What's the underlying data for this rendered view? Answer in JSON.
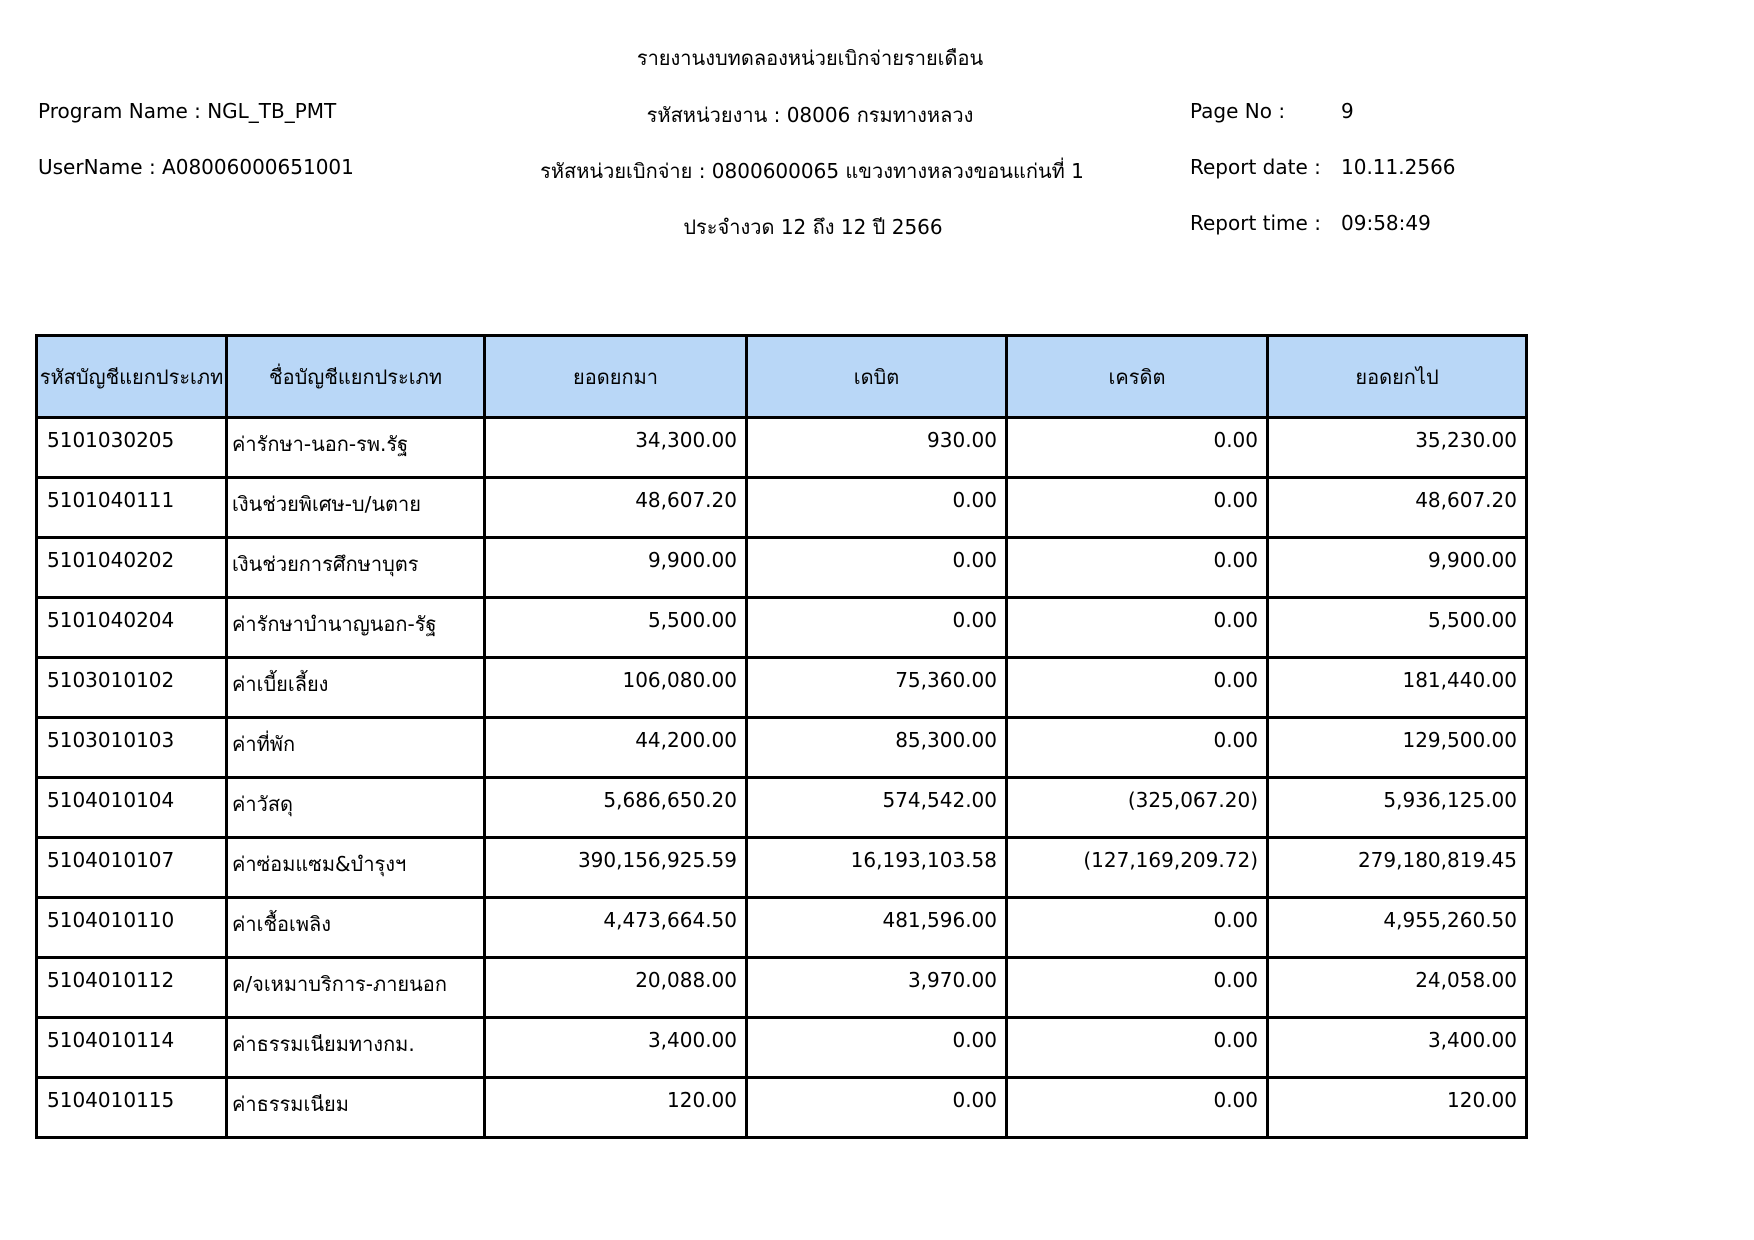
{
  "report": {
    "title": "รายงานงบทดลองหน่วยเบิกจ่ายรายเดือน",
    "program_name_line": "Program Name : NGL_TB_PMT",
    "username_line": "UserName : A08006000651001",
    "agency_line": "รหัสหน่วยงาน : 08006 กรมทางหลวง",
    "unit_line": "รหัสหน่วยเบิกจ่าย : 0800600065 แขวงทางหลวงขอนแก่นที่ 1",
    "period_line": "ประจำงวด 12 ถึง 12 ปี 2566",
    "page_no_label": "Page No :",
    "page_no": "9",
    "report_date_label": "Report date :",
    "report_date": "10.11.2566",
    "report_time_label": "Report time :",
    "report_time": "09:58:49"
  },
  "colors": {
    "header_bg": "#B9D7F7",
    "border": "#000000"
  },
  "table": {
    "columns": [
      "รหัสบัญชีแยกประเภท",
      "ชื่อบัญชีแยกประเภท",
      "ยอดยกมา",
      "เดบิต",
      "เครดิต",
      "ยอดยกไป"
    ],
    "rows": [
      [
        "5101030205",
        "ค่ารักษา-นอก-รพ.รัฐ",
        "34,300.00",
        "930.00",
        "0.00",
        "35,230.00"
      ],
      [
        "5101040111",
        "เงินช่วยพิเศษ-บ/นตาย",
        "48,607.20",
        "0.00",
        "0.00",
        "48,607.20"
      ],
      [
        "5101040202",
        "เงินช่วยการศึกษาบุตร",
        "9,900.00",
        "0.00",
        "0.00",
        "9,900.00"
      ],
      [
        "5101040204",
        "ค่ารักษาบำนาญนอก-รัฐ",
        "5,500.00",
        "0.00",
        "0.00",
        "5,500.00"
      ],
      [
        "5103010102",
        "ค่าเบี้ยเลี้ยง",
        "106,080.00",
        "75,360.00",
        "0.00",
        "181,440.00"
      ],
      [
        "5103010103",
        "ค่าที่พัก",
        "44,200.00",
        "85,300.00",
        "0.00",
        "129,500.00"
      ],
      [
        "5104010104",
        "ค่าวัสดุ",
        "5,686,650.20",
        "574,542.00",
        "(325,067.20)",
        "5,936,125.00"
      ],
      [
        "5104010107",
        "ค่าซ่อมแซม&บำรุงฯ",
        "390,156,925.59",
        "16,193,103.58",
        "(127,169,209.72)",
        "279,180,819.45"
      ],
      [
        "5104010110",
        "ค่าเชื้อเพลิง",
        "4,473,664.50",
        "481,596.00",
        "0.00",
        "4,955,260.50"
      ],
      [
        "5104010112",
        "ค/จเหมาบริการ-ภายนอก",
        "20,088.00",
        "3,970.00",
        "0.00",
        "24,058.00"
      ],
      [
        "5104010114",
        "ค่าธรรมเนียมทางกม.",
        "3,400.00",
        "0.00",
        "0.00",
        "3,400.00"
      ],
      [
        "5104010115",
        "ค่าธรรมเนียม",
        "120.00",
        "0.00",
        "0.00",
        "120.00"
      ]
    ]
  }
}
